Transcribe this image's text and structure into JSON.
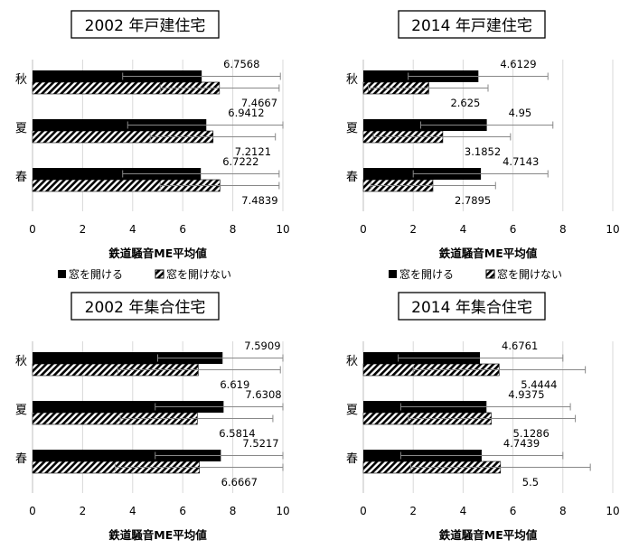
{
  "chart_data": [
    {
      "type": "bar",
      "orientation": "horizontal",
      "title": "2002 年戸建住宅",
      "xlabel": "鉄道騒音ME平均値",
      "xlim": [
        0,
        10
      ],
      "xticks": [
        "0",
        "2",
        "4",
        "6",
        "8",
        "10"
      ],
      "categories": [
        "秋",
        "夏",
        "春"
      ],
      "series": [
        {
          "name": "窓を開ける",
          "fill": "solid",
          "color": "#000000",
          "values": [
            6.7568,
            6.9412,
            6.7222
          ],
          "labels": [
            "6.7568",
            "6.9412",
            "6.7222"
          ],
          "err_low": [
            3.6,
            3.8,
            3.6
          ],
          "err_high": [
            9.9,
            10.0,
            9.85
          ]
        },
        {
          "name": "窓を開けない",
          "fill": "hatch",
          "color": "#000000",
          "values": [
            7.4667,
            7.2121,
            7.4839
          ],
          "labels": [
            "7.4667",
            "7.2121",
            "7.4839"
          ],
          "err_low": [
            5.1,
            4.7,
            5.1
          ],
          "err_high": [
            9.85,
            9.7,
            9.85
          ]
        }
      ],
      "grid": "vertical"
    },
    {
      "type": "bar",
      "orientation": "horizontal",
      "title": "2014 年戸建住宅",
      "xlabel": "鉄道騒音ME平均値",
      "xlim": [
        0,
        10
      ],
      "xticks": [
        "0",
        "2",
        "4",
        "6",
        "8",
        "10"
      ],
      "categories": [
        "秋",
        "夏",
        "春"
      ],
      "series": [
        {
          "name": "窓を開ける",
          "fill": "solid",
          "color": "#000000",
          "values": [
            4.6129,
            4.95,
            4.7143
          ],
          "labels": [
            "4.6129",
            "4.95",
            "4.7143"
          ],
          "err_low": [
            1.8,
            2.3,
            2.0
          ],
          "err_high": [
            7.4,
            7.6,
            7.4
          ]
        },
        {
          "name": "窓を開けない",
          "fill": "hatch",
          "color": "#000000",
          "values": [
            2.625,
            3.1852,
            2.7895
          ],
          "labels": [
            "2.625",
            "3.1852",
            "2.7895"
          ],
          "err_low": [
            0.2,
            0.4,
            0.3
          ],
          "err_high": [
            5.0,
            5.9,
            5.3
          ]
        }
      ],
      "grid": "vertical"
    },
    {
      "type": "bar",
      "orientation": "horizontal",
      "title": "2002 年集合住宅",
      "xlabel": "鉄道騒音ME平均値",
      "xlim": [
        0,
        10
      ],
      "xticks": [
        "0",
        "2",
        "4",
        "6",
        "8",
        "10"
      ],
      "categories": [
        "秋",
        "夏",
        "春"
      ],
      "series": [
        {
          "name": "窓を開ける",
          "fill": "solid",
          "color": "#000000",
          "values": [
            7.5909,
            7.6308,
            7.5217
          ],
          "labels": [
            "7.5909",
            "7.6308",
            "7.5217"
          ],
          "err_low": [
            5.0,
            4.9,
            4.9
          ],
          "err_high": [
            10.0,
            10.0,
            10.0
          ]
        },
        {
          "name": "窓を開けない",
          "fill": "hatch",
          "color": "#000000",
          "values": [
            6.619,
            6.5814,
            6.6667
          ],
          "labels": [
            "6.619",
            "6.5814",
            "6.6667"
          ],
          "err_low": [
            3.4,
            3.5,
            3.3
          ],
          "err_high": [
            9.9,
            9.6,
            10.0
          ]
        }
      ],
      "grid": "vertical"
    },
    {
      "type": "bar",
      "orientation": "horizontal",
      "title": "2014 年集合住宅",
      "xlabel": "鉄道騒音ME平均値",
      "xlim": [
        0,
        10
      ],
      "xticks": [
        "0",
        "2",
        "4",
        "6",
        "8",
        "10"
      ],
      "categories": [
        "秋",
        "夏",
        "春"
      ],
      "series": [
        {
          "name": "窓を開ける",
          "fill": "solid",
          "color": "#000000",
          "values": [
            4.6761,
            4.9375,
            4.7439
          ],
          "labels": [
            "4.6761",
            "4.9375",
            "4.7439"
          ],
          "err_low": [
            1.4,
            1.5,
            1.5
          ],
          "err_high": [
            8.0,
            8.3,
            8.0
          ]
        },
        {
          "name": "窓を開けない",
          "fill": "hatch",
          "color": "#000000",
          "values": [
            5.4444,
            5.1286,
            5.5
          ],
          "labels": [
            "5.4444",
            "5.1286",
            "5.5"
          ],
          "err_low": [
            2.0,
            1.8,
            1.9
          ],
          "err_high": [
            8.9,
            8.5,
            9.1
          ]
        }
      ],
      "grid": "vertical"
    }
  ]
}
